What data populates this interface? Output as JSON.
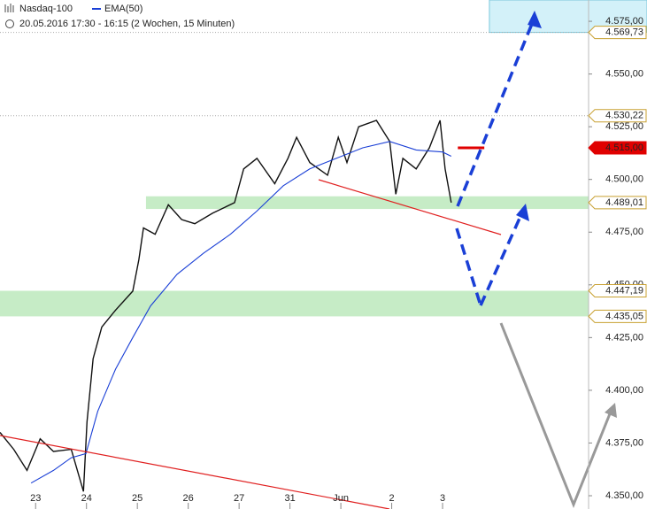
{
  "chart_data": {
    "type": "line",
    "title": "Nasdaq-100",
    "indicator": "EMA(50)",
    "subtitle": "20.05.2016 17:30 - 16:15 (2 Wochen, 15 Minuten)",
    "xlim": [
      -0.7,
      10.87
    ],
    "xticks": [
      {
        "value": 0,
        "label": "23"
      },
      {
        "value": 1,
        "label": "24"
      },
      {
        "value": 2,
        "label": "25"
      },
      {
        "value": 3,
        "label": "26"
      },
      {
        "value": 4,
        "label": "27"
      },
      {
        "value": 5,
        "label": "31"
      },
      {
        "value": 6,
        "label": "Jun"
      },
      {
        "value": 7,
        "label": "2"
      },
      {
        "value": 8,
        "label": "3"
      }
    ],
    "ylim": [
      4343.7,
      4585.1
    ],
    "yticks": [
      {
        "value": 4350,
        "label": "4.350,00"
      },
      {
        "value": 4375,
        "label": "4.375,00"
      },
      {
        "value": 4400,
        "label": "4.400,00"
      },
      {
        "value": 4425,
        "label": "4.425,00"
      },
      {
        "value": 4450,
        "label": "4.450,00"
      },
      {
        "value": 4475,
        "label": "4.475,00"
      },
      {
        "value": 4500,
        "label": "4.500,00"
      },
      {
        "value": 4525,
        "label": "4.525,00"
      },
      {
        "value": 4550,
        "label": "4.550,00"
      },
      {
        "value": 4575,
        "label": "4.575,00"
      }
    ],
    "series": [
      {
        "name": "Nasdaq-100",
        "color": "#111111",
        "x": [
          -0.7,
          -0.43,
          -0.17,
          0.09,
          0.35,
          0.7,
          0.94,
          1.01,
          1.13,
          1.3,
          1.57,
          1.91,
          2.03,
          2.12,
          2.35,
          2.61,
          2.87,
          3.13,
          3.48,
          3.91,
          4.09,
          4.35,
          4.7,
          4.96,
          5.13,
          5.39,
          5.74,
          5.95,
          6.12,
          6.35,
          6.7,
          6.96,
          7.08,
          7.22,
          7.48,
          7.74,
          7.95,
          8.05,
          8.17
        ],
        "values": [
          4380,
          4372,
          4362,
          4377,
          4371,
          4372,
          4352,
          4385,
          4415,
          4430,
          4438,
          4447,
          4462,
          4477,
          4474,
          4488,
          4481,
          4479,
          4484,
          4489,
          4505,
          4510,
          4498,
          4510,
          4520,
          4508,
          4502,
          4520,
          4508,
          4525,
          4528,
          4518,
          4493,
          4510,
          4505,
          4515,
          4528,
          4505,
          4489
        ]
      },
      {
        "name": "EMA(50)",
        "color": "#1a3fd6",
        "x": [
          -0.09,
          0.35,
          0.7,
          0.99,
          1.22,
          1.57,
          1.91,
          2.26,
          2.78,
          3.3,
          3.83,
          4.35,
          4.87,
          5.39,
          5.91,
          6.43,
          6.96,
          7.48,
          8.0,
          8.17
        ],
        "values": [
          4356,
          4362,
          4368,
          4370,
          4390,
          4410,
          4425,
          4440,
          4455,
          4465,
          4474,
          4485,
          4497,
          4505,
          4510,
          4515,
          4518,
          4514,
          4513,
          4511
        ]
      }
    ],
    "zones": [
      {
        "from": 4569.73,
        "to": 4585.1,
        "x_from": 8.92,
        "color": "#d3f1f9"
      },
      {
        "from": 4486,
        "to": 4492,
        "x_from": 2.17,
        "color": "#c6ecc6"
      },
      {
        "from": 4435.05,
        "to": 4447.19,
        "x_from": -0.7,
        "color": "#c6ecc6"
      }
    ],
    "price_labels": [
      {
        "value": 4569.73,
        "label": "4.569,73",
        "color": "#ffffff",
        "guide": true
      },
      {
        "value": 4530.22,
        "label": "4.530,22",
        "color": "#ffffff",
        "guide": true
      },
      {
        "value": 4515,
        "label": "4.515,00",
        "color": "#e00000",
        "guide": false
      },
      {
        "value": 4489.01,
        "label": "4.489,01",
        "color": "#ffffff",
        "guide": false
      },
      {
        "value": 4447.19,
        "label": "4.447,19",
        "color": "#ffffff",
        "guide": false
      },
      {
        "value": 4435.05,
        "label": "4.435,05",
        "color": "#ffffff",
        "guide": false
      }
    ]
  }
}
